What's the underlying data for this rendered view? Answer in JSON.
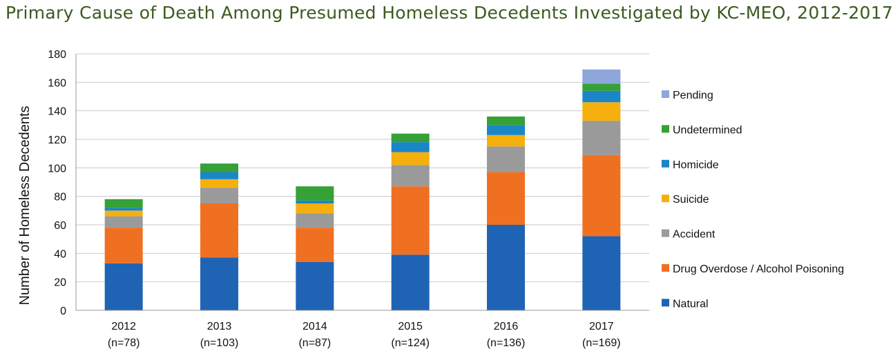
{
  "chart_data": {
    "type": "bar",
    "stacked": true,
    "title": "Primary Cause of Death Among Presumed Homeless Decedents Investigated by KC-MEO, 2012-2017",
    "ylabel": "Number of Homeless Decedents",
    "xlabel": "",
    "ylim": [
      0,
      180
    ],
    "yticks": [
      0,
      20,
      40,
      60,
      80,
      100,
      120,
      140,
      160,
      180
    ],
    "grid": true,
    "legend_position": "right",
    "categories": [
      "2012",
      "2013",
      "2014",
      "2015",
      "2016",
      "2017"
    ],
    "category_sublabels": [
      "(n=78)",
      "(n=103)",
      "(n=87)",
      "(n=124)",
      "(n=136)",
      "(n=169)"
    ],
    "series": [
      {
        "name": "Natural",
        "color": "#1f63b5",
        "values": [
          33,
          37,
          34,
          39,
          60,
          52
        ]
      },
      {
        "name": "Drug Overdose / Alcohol Poisoning",
        "color": "#f07022",
        "values": [
          25,
          38,
          24,
          48,
          37,
          57
        ]
      },
      {
        "name": "Accident",
        "color": "#9a9a9a",
        "values": [
          8,
          11,
          10,
          15,
          18,
          24
        ]
      },
      {
        "name": "Suicide",
        "color": "#f5b00e",
        "values": [
          4,
          6,
          7,
          9,
          8,
          13
        ]
      },
      {
        "name": "Homicide",
        "color": "#1a86c7",
        "values": [
          2,
          5,
          2,
          7,
          7,
          8
        ]
      },
      {
        "name": "Undetermined",
        "color": "#35a136",
        "values": [
          6,
          6,
          10,
          6,
          6,
          5
        ]
      },
      {
        "name": "Pending",
        "color": "#8ea6d9",
        "values": [
          0,
          0,
          0,
          0,
          0,
          10
        ]
      }
    ]
  }
}
